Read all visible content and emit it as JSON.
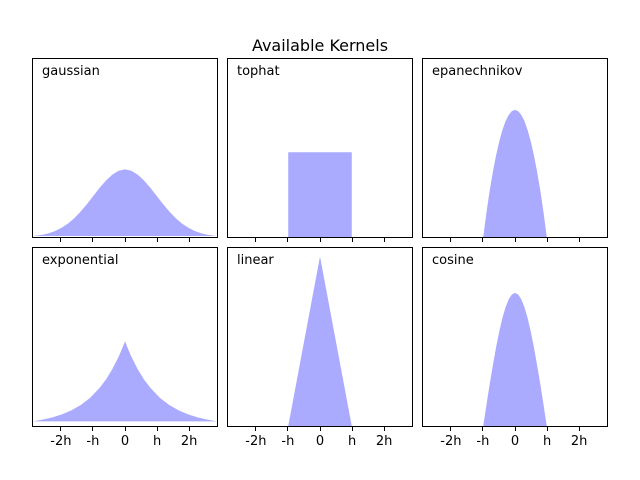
{
  "chart_data": {
    "type": "area",
    "title": "Available Kernels",
    "layout": "2x3 subplot grid, shared x and y axes, x tick labels on bottom row only, no y ticks",
    "xlim": [
      -2.9,
      2.9
    ],
    "ylim": [
      0,
      1.05
    ],
    "x_ticks": [
      -2,
      -1,
      0,
      1,
      2
    ],
    "x_tick_labels": [
      "-2h",
      "-h",
      "0",
      "h",
      "2h"
    ],
    "fill_color": "#AAAAFF",
    "axes_color": "#000000",
    "text_color": "#000000",
    "background_color": "#ffffff",
    "subplots": [
      {
        "label": "gaussian",
        "points": [
          [
            -2.9,
            0.006
          ],
          [
            -2.8,
            0.0079
          ],
          [
            -2.6,
            0.0136
          ],
          [
            -2.4,
            0.0224
          ],
          [
            -2.2,
            0.0355
          ],
          [
            -2.0,
            0.054
          ],
          [
            -1.8,
            0.079
          ],
          [
            -1.6,
            0.1109
          ],
          [
            -1.4,
            0.1497
          ],
          [
            -1.2,
            0.1942
          ],
          [
            -1.0,
            0.242
          ],
          [
            -0.8,
            0.2897
          ],
          [
            -0.6,
            0.3332
          ],
          [
            -0.4,
            0.3683
          ],
          [
            -0.2,
            0.391
          ],
          [
            0,
            0.3989
          ],
          [
            0.2,
            0.391
          ],
          [
            0.4,
            0.3683
          ],
          [
            0.6,
            0.3332
          ],
          [
            0.8,
            0.2897
          ],
          [
            1.0,
            0.242
          ],
          [
            1.2,
            0.1942
          ],
          [
            1.4,
            0.1497
          ],
          [
            1.6,
            0.1109
          ],
          [
            1.8,
            0.079
          ],
          [
            2.0,
            0.054
          ],
          [
            2.2,
            0.0355
          ],
          [
            2.4,
            0.0224
          ],
          [
            2.6,
            0.0136
          ],
          [
            2.8,
            0.0079
          ],
          [
            2.9,
            0.006
          ]
        ]
      },
      {
        "label": "tophat",
        "points": [
          [
            -2.9,
            0
          ],
          [
            -1,
            0
          ],
          [
            -1,
            0.5
          ],
          [
            1,
            0.5
          ],
          [
            1,
            0
          ],
          [
            2.9,
            0
          ]
        ]
      },
      {
        "label": "epanechnikov",
        "points": [
          [
            -2.9,
            0
          ],
          [
            -1,
            0
          ],
          [
            -0.9,
            0.1425
          ],
          [
            -0.8,
            0.27
          ],
          [
            -0.7,
            0.3825
          ],
          [
            -0.6,
            0.48
          ],
          [
            -0.5,
            0.5625
          ],
          [
            -0.4,
            0.63
          ],
          [
            -0.3,
            0.6825
          ],
          [
            -0.2,
            0.72
          ],
          [
            -0.1,
            0.7425
          ],
          [
            0,
            0.75
          ],
          [
            0.1,
            0.7425
          ],
          [
            0.2,
            0.72
          ],
          [
            0.3,
            0.6825
          ],
          [
            0.4,
            0.63
          ],
          [
            0.5,
            0.5625
          ],
          [
            0.6,
            0.48
          ],
          [
            0.7,
            0.3825
          ],
          [
            0.8,
            0.27
          ],
          [
            0.9,
            0.1425
          ],
          [
            1,
            0
          ],
          [
            2.9,
            0
          ]
        ]
      },
      {
        "label": "exponential",
        "points": [
          [
            -2.9,
            0.0275
          ],
          [
            -2.6,
            0.0371
          ],
          [
            -2.3,
            0.0501
          ],
          [
            -2.0,
            0.0677
          ],
          [
            -1.7,
            0.0913
          ],
          [
            -1.4,
            0.1233
          ],
          [
            -1.1,
            0.1665
          ],
          [
            -0.8,
            0.2247
          ],
          [
            -0.6,
            0.2744
          ],
          [
            -0.4,
            0.3352
          ],
          [
            -0.2,
            0.4094
          ],
          [
            -0.1,
            0.4524
          ],
          [
            0,
            0.5
          ],
          [
            0.1,
            0.4524
          ],
          [
            0.2,
            0.4094
          ],
          [
            0.4,
            0.3352
          ],
          [
            0.6,
            0.2744
          ],
          [
            0.8,
            0.2247
          ],
          [
            1.1,
            0.1665
          ],
          [
            1.4,
            0.1233
          ],
          [
            1.7,
            0.0913
          ],
          [
            2.0,
            0.0677
          ],
          [
            2.3,
            0.0501
          ],
          [
            2.6,
            0.0371
          ],
          [
            2.9,
            0.0275
          ]
        ]
      },
      {
        "label": "linear",
        "points": [
          [
            -2.9,
            0
          ],
          [
            -1,
            0
          ],
          [
            0,
            1
          ],
          [
            1,
            0
          ],
          [
            2.9,
            0
          ]
        ]
      },
      {
        "label": "cosine",
        "points": [
          [
            -2.9,
            0
          ],
          [
            -1,
            0
          ],
          [
            -0.9,
            0.1229
          ],
          [
            -0.8,
            0.2427
          ],
          [
            -0.7,
            0.3566
          ],
          [
            -0.6,
            0.4616
          ],
          [
            -0.5,
            0.5554
          ],
          [
            -0.4,
            0.6354
          ],
          [
            -0.3,
            0.6998
          ],
          [
            -0.2,
            0.747
          ],
          [
            -0.1,
            0.7757
          ],
          [
            0,
            0.7854
          ],
          [
            0.1,
            0.7757
          ],
          [
            0.2,
            0.747
          ],
          [
            0.3,
            0.6998
          ],
          [
            0.4,
            0.6354
          ],
          [
            0.5,
            0.5554
          ],
          [
            0.6,
            0.4616
          ],
          [
            0.7,
            0.3566
          ],
          [
            0.8,
            0.2427
          ],
          [
            0.9,
            0.1229
          ],
          [
            1,
            0
          ],
          [
            2.9,
            0
          ]
        ]
      }
    ]
  }
}
